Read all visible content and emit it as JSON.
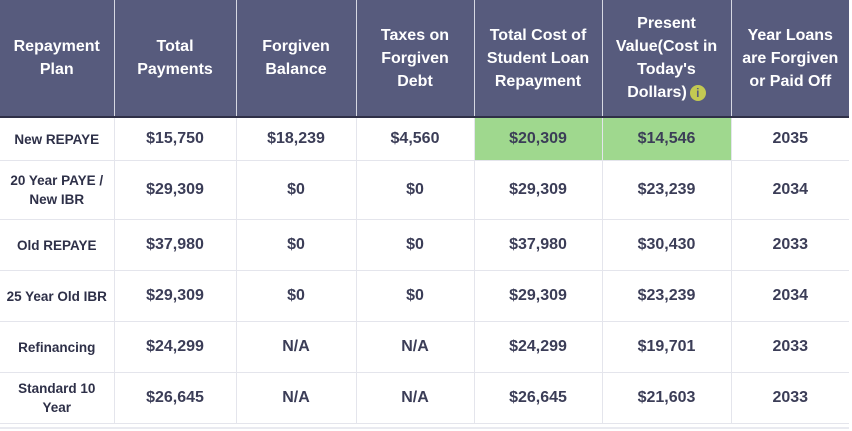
{
  "table": {
    "headers": [
      "Repayment Plan",
      "Total Payments",
      "Forgiven Balance",
      "Taxes on Forgiven Debt",
      "Total Cost of Student Loan Repayment",
      "Present Value(Cost in Today's Dollars)",
      "Year Loans are Forgiven or Paid Off"
    ],
    "info_icon": "info-icon",
    "highlight_color": "#9fd88e",
    "header_color": "#575b7d",
    "rows": [
      [
        "New REPAYE",
        "$15,750",
        "$18,239",
        "$4,560",
        "$20,309",
        "$14,546",
        "2035"
      ],
      [
        "20 Year PAYE / New IBR",
        "$29,309",
        "$0",
        "$0",
        "$29,309",
        "$23,239",
        "2034"
      ],
      [
        "Old REPAYE",
        "$37,980",
        "$0",
        "$0",
        "$37,980",
        "$30,430",
        "2033"
      ],
      [
        "25 Year Old IBR",
        "$29,309",
        "$0",
        "$0",
        "$29,309",
        "$23,239",
        "2034"
      ],
      [
        "Refinancing",
        "$24,299",
        "N/A",
        "N/A",
        "$24,299",
        "$19,701",
        "2033"
      ],
      [
        "Standard 10 Year",
        "$26,645",
        "N/A",
        "N/A",
        "$26,645",
        "$21,603",
        "2033"
      ]
    ]
  }
}
